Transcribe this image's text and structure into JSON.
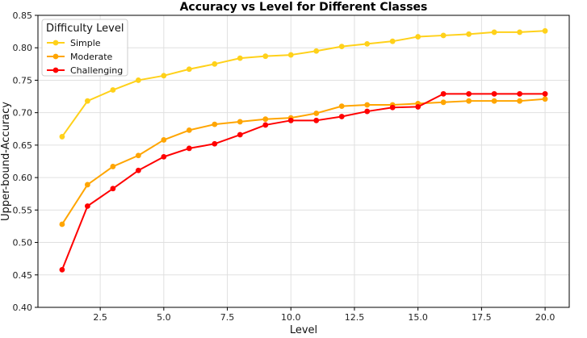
{
  "chart_data": {
    "type": "line",
    "title": "Accuracy vs Level for Different Classes",
    "xlabel": "Level",
    "ylabel": "Upper-bound-Accuracy",
    "xlim": [
      0.05,
      20.95
    ],
    "ylim": [
      0.4,
      0.85
    ],
    "xticks": [
      2.5,
      5.0,
      7.5,
      10.0,
      12.5,
      15.0,
      17.5,
      20.0
    ],
    "xtick_labels": [
      "2.5",
      "5.0",
      "7.5",
      "10.0",
      "12.5",
      "15.0",
      "17.5",
      "20.0"
    ],
    "yticks": [
      0.4,
      0.45,
      0.5,
      0.55,
      0.6,
      0.65,
      0.7,
      0.75,
      0.8,
      0.85
    ],
    "ytick_labels": [
      "0.40",
      "0.45",
      "0.50",
      "0.55",
      "0.60",
      "0.65",
      "0.70",
      "0.75",
      "0.80",
      "0.85"
    ],
    "grid": true,
    "legend": {
      "title": "Difficulty Level",
      "placement": "upper-left"
    },
    "x": [
      1,
      2,
      3,
      4,
      5,
      6,
      7,
      8,
      9,
      10,
      11,
      12,
      13,
      14,
      15,
      16,
      17,
      18,
      19,
      20
    ],
    "series": [
      {
        "name": "Simple",
        "color": "#ffd11a",
        "values": [
          0.663,
          0.718,
          0.735,
          0.75,
          0.757,
          0.767,
          0.775,
          0.784,
          0.787,
          0.789,
          0.795,
          0.802,
          0.806,
          0.81,
          0.817,
          0.819,
          0.821,
          0.824,
          0.824,
          0.826
        ]
      },
      {
        "name": "Moderate",
        "color": "#ffa500",
        "values": [
          0.528,
          0.589,
          0.617,
          0.634,
          0.658,
          0.673,
          0.682,
          0.686,
          0.69,
          0.692,
          0.699,
          0.71,
          0.712,
          0.712,
          0.714,
          0.716,
          0.718,
          0.718,
          0.718,
          0.721
        ]
      },
      {
        "name": "Challenging",
        "color": "#ff0000",
        "values": [
          0.458,
          0.556,
          0.583,
          0.611,
          0.632,
          0.645,
          0.652,
          0.666,
          0.681,
          0.688,
          0.688,
          0.694,
          0.702,
          0.708,
          0.709,
          0.729,
          0.729,
          0.729,
          0.729,
          0.729
        ]
      }
    ]
  }
}
